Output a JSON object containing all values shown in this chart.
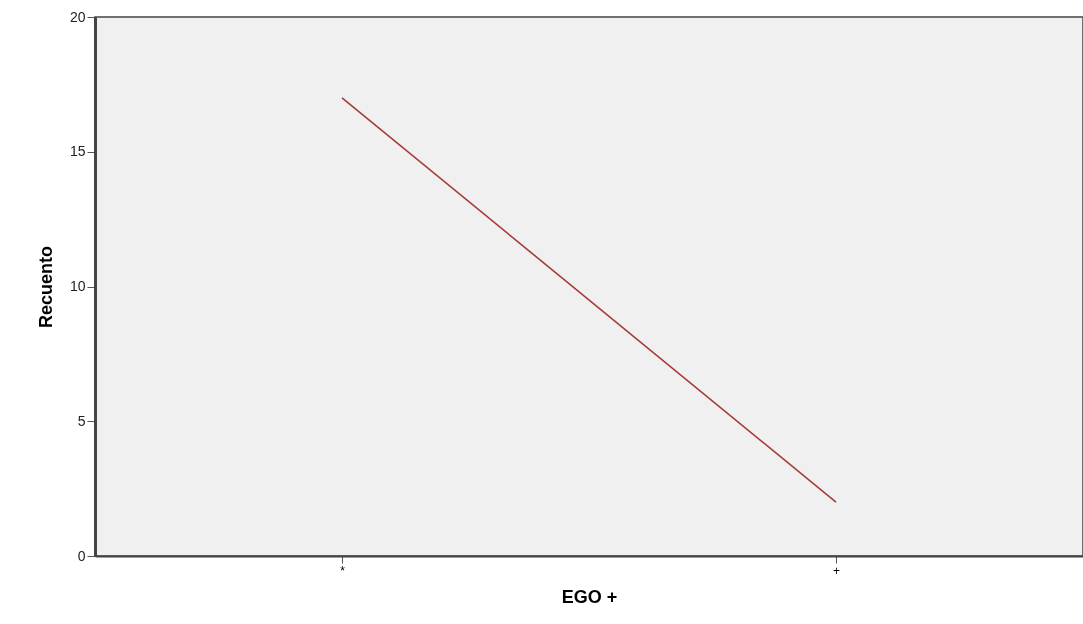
{
  "chart_data": {
    "type": "line",
    "xlabel": "EGO +",
    "ylabel": "Recuento",
    "categories": [
      "*",
      "+"
    ],
    "series": [
      {
        "color": "#a83a3a",
        "values": [
          17,
          2
        ]
      }
    ],
    "ylim": [
      0,
      20
    ],
    "yticks": [
      0,
      5,
      10,
      15,
      20
    ],
    "grid": false,
    "marker": "none",
    "line_style": "solid"
  }
}
